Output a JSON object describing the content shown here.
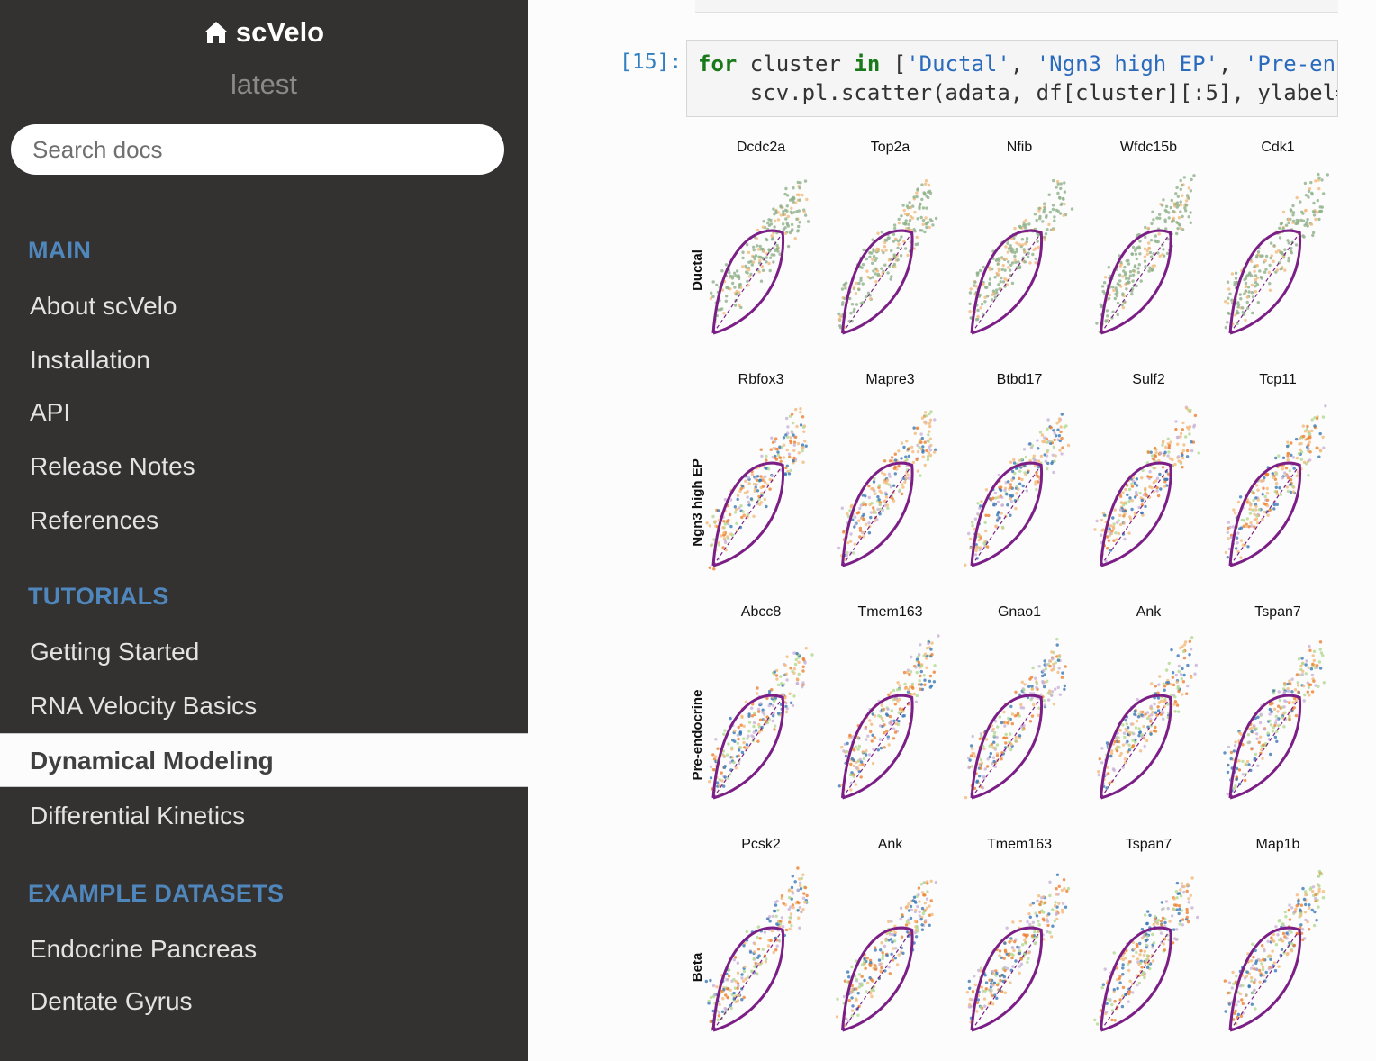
{
  "sidebar": {
    "brand": "scVelo",
    "version": "latest",
    "search_placeholder": "Search docs",
    "sections": [
      {
        "caption": "MAIN",
        "items": [
          "About scVelo",
          "Installation",
          "API",
          "Release Notes",
          "References"
        ]
      },
      {
        "caption": "TUTORIALS",
        "items": [
          "Getting Started",
          "RNA Velocity Basics",
          "Dynamical Modeling",
          "Differential Kinetics"
        ]
      },
      {
        "caption": "EXAMPLE DATASETS",
        "items": [
          "Endocrine Pancreas",
          "Dentate Gyrus"
        ]
      }
    ],
    "current_item": "Dynamical Modeling"
  },
  "cell": {
    "prompt": "[15]:",
    "line1": {
      "kw1": "for",
      "t1": " cluster ",
      "kw2": "in",
      "t2": " [",
      "s1": "'Ductal'",
      "t3": ", ",
      "s2": "'Ngn3 high EP'",
      "t4": ", ",
      "s3": "'Pre-en"
    },
    "line2": "    scv.pl.scatter(adata, df[cluster][:5], ylabel="
  },
  "colors": {
    "fit_curve": "#7b1f86",
    "ductal": "#8fb08a",
    "ngn3_low": "#f3b97a",
    "ngn3_high": "#ee7f2e",
    "pre_endocrine": "#b2d88f",
    "beta": "#3a78b5",
    "alpha": "#c8b2d6"
  },
  "chart_data": {
    "type": "scatter",
    "rows": [
      {
        "ylabel": "Ductal",
        "genes": [
          "Dcdc2a",
          "Top2a",
          "Nfib",
          "Wfdc15b",
          "Cdk1"
        ]
      },
      {
        "ylabel": "Ngn3 high EP",
        "genes": [
          "Rbfox3",
          "Mapre3",
          "Btbd17",
          "Sulf2",
          "Tcp11"
        ]
      },
      {
        "ylabel": "Pre-endocrine",
        "genes": [
          "Abcc8",
          "Tmem163",
          "Gnao1",
          "Ank",
          "Tspan7"
        ]
      },
      {
        "ylabel": "Beta",
        "genes": [
          "Pcsk2",
          "Ank",
          "Tmem163",
          "Tspan7",
          "Map1b"
        ]
      }
    ]
  }
}
